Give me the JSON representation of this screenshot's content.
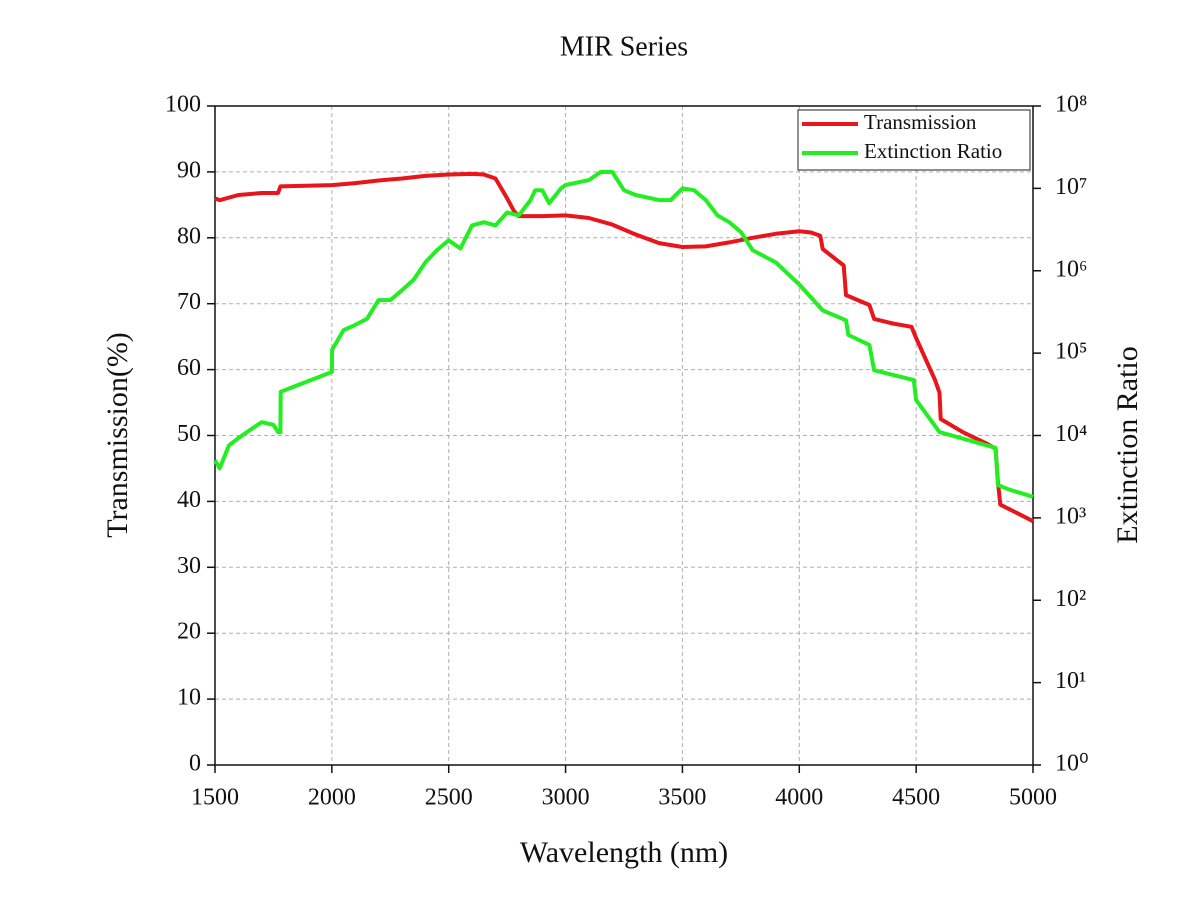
{
  "chart_data": {
    "type": "line",
    "title": "MIR Series",
    "xlabel": "Wavelength (nm)",
    "ylabel": "Transmission(%)",
    "y2label": "Extinction Ratio",
    "xlim": [
      1500,
      5000
    ],
    "xticks": [
      1500,
      2000,
      2500,
      3000,
      3500,
      4000,
      4500,
      5000
    ],
    "ylim": [
      0,
      100
    ],
    "yticks": [
      0,
      10,
      20,
      30,
      40,
      50,
      60,
      70,
      80,
      90,
      100
    ],
    "y2lim": [
      1,
      100000000
    ],
    "y2scale": "log",
    "y2ticks": [
      {
        "value": 1,
        "label": "10⁰"
      },
      {
        "value": 10,
        "label": "10¹"
      },
      {
        "value": 100,
        "label": "10²"
      },
      {
        "value": 1000,
        "label": "10³"
      },
      {
        "value": 10000,
        "label": "10⁴"
      },
      {
        "value": 100000,
        "label": "10⁵"
      },
      {
        "value": 1000000,
        "label": "10⁶"
      },
      {
        "value": 10000000,
        "label": "10⁷"
      },
      {
        "value": 100000000,
        "label": "10⁸"
      }
    ],
    "grid": true,
    "legend": "upper right",
    "series": [
      {
        "name": "Transmission",
        "color": "#e8151b",
        "x": [
          1500,
          1520,
          1600,
          1700,
          1770,
          1780,
          2000,
          2100,
          2200,
          2300,
          2400,
          2500,
          2600,
          2650,
          2700,
          2750,
          2780,
          2800,
          2900,
          3000,
          3100,
          3200,
          3300,
          3400,
          3500,
          3600,
          3700,
          3800,
          3900,
          4000,
          4050,
          4090,
          4100,
          4190,
          4200,
          4300,
          4320,
          4400,
          4480,
          4500,
          4580,
          4600,
          4605,
          4700,
          4800,
          4840,
          4850,
          4860,
          4900,
          5000
        ],
        "values": [
          86,
          85.7,
          86.5,
          86.8,
          86.8,
          87.8,
          88,
          88.3,
          88.7,
          89,
          89.4,
          89.6,
          89.7,
          89.6,
          89,
          86,
          84,
          83.3,
          83.3,
          83.4,
          83,
          82,
          80.5,
          79.2,
          78.6,
          78.7,
          79.3,
          80,
          80.6,
          81,
          80.8,
          80.3,
          78.3,
          75.8,
          71.3,
          69.8,
          67.7,
          67,
          66.5,
          64.8,
          58.5,
          56.5,
          52.5,
          50.5,
          48.8,
          48,
          43,
          39.5,
          38.8,
          37
        ]
      },
      {
        "name": "Extinction Ratio",
        "color": "#22ee22",
        "axis": "y2",
        "x": [
          1500,
          1520,
          1560,
          1600,
          1650,
          1700,
          1750,
          1770,
          1780,
          1781,
          2000,
          2001,
          2050,
          2100,
          2150,
          2200,
          2250,
          2300,
          2350,
          2400,
          2450,
          2500,
          2550,
          2600,
          2650,
          2700,
          2750,
          2800,
          2850,
          2870,
          2900,
          2930,
          2980,
          3000,
          3100,
          3150,
          3200,
          3250,
          3300,
          3400,
          3450,
          3500,
          3550,
          3600,
          3650,
          3700,
          3750,
          3800,
          3900,
          4000,
          4100,
          4200,
          4210,
          4300,
          4320,
          4490,
          4500,
          4600,
          4840,
          4850,
          4900,
          5000
        ],
        "values": [
          5000,
          4000,
          7600,
          9300,
          11700,
          14500,
          13500,
          11000,
          11000,
          34000,
          59000,
          110000,
          190000,
          220000,
          260000,
          440000,
          440000,
          580000,
          780000,
          1260000,
          1780000,
          2340000,
          1860000,
          3550000,
          3890000,
          3550000,
          5100000,
          4700000,
          7200000,
          9500000,
          9500000,
          6600000,
          10000000,
          11000000,
          12600000,
          15800000,
          15800000,
          9500000,
          8300000,
          7200000,
          7200000,
          10000000,
          9500000,
          7200000,
          4700000,
          3890000,
          2950000,
          1780000,
          1260000,
          680000,
          330000,
          250000,
          166000,
          126000,
          62000,
          47000,
          27000,
          11000,
          7100,
          2500,
          2200,
          1800
        ]
      }
    ]
  }
}
